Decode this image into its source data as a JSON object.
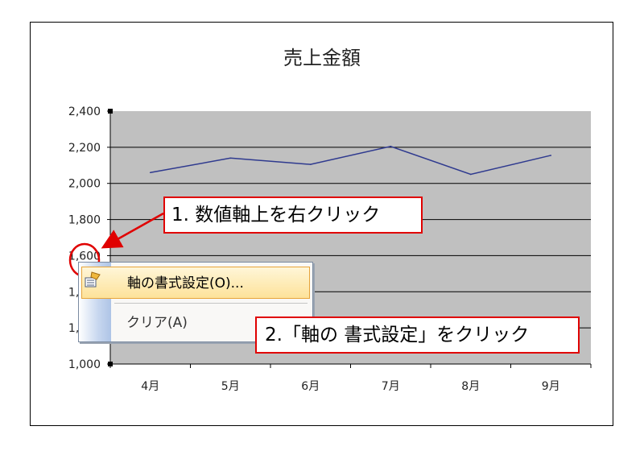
{
  "chart_data": {
    "type": "line",
    "title": "売上金額",
    "categories": [
      "4月",
      "5月",
      "6月",
      "7月",
      "8月",
      "9月"
    ],
    "series": [
      {
        "values": [
          2060,
          2140,
          2105,
          2205,
          2050,
          2155
        ],
        "color": "#2f3a8f"
      }
    ],
    "y_ticks": [
      "2,400",
      "2,200",
      "2,000",
      "1,800",
      "1,600",
      "1,400",
      "1,200",
      "1,000"
    ],
    "ylim": [
      1000,
      2400
    ],
    "grid": true,
    "plot_background": "#c0c0c0"
  },
  "callouts": {
    "step1": "1. 数値軸上を右クリック",
    "step2": "2.「軸の 書式設定」をクリック",
    "color": "#e00000"
  },
  "context_menu": {
    "items": [
      {
        "label": "軸の書式設定(O)...",
        "icon": "format-axis-icon",
        "highlighted": true
      },
      {
        "label": "クリア(A)",
        "highlighted": false
      }
    ]
  }
}
